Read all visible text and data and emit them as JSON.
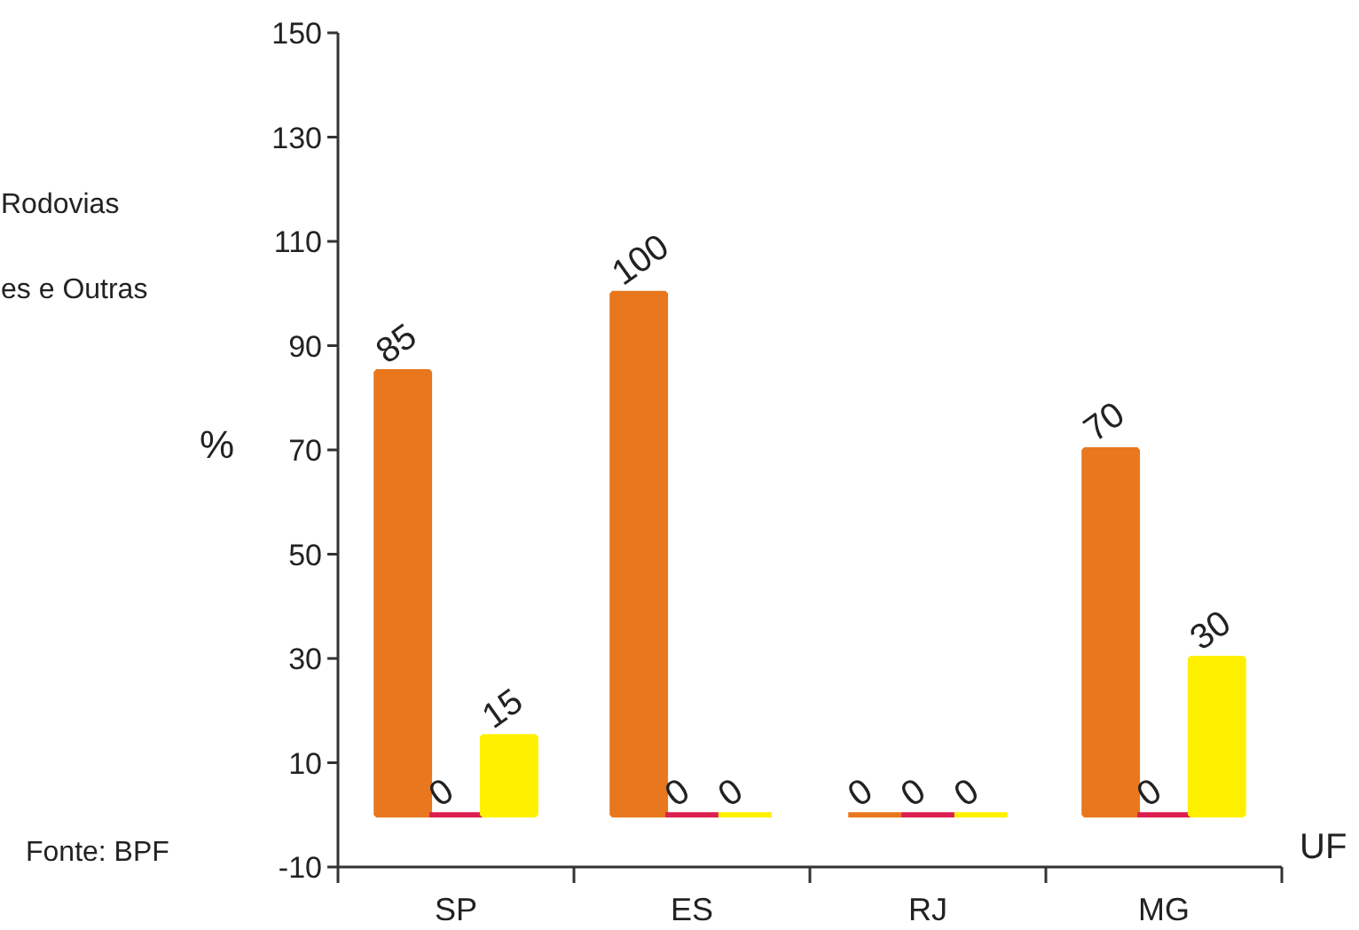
{
  "chart_data": {
    "type": "bar",
    "categories": [
      "SP",
      "ES",
      "RJ",
      "MG"
    ],
    "series": [
      {
        "color": "#e8771e",
        "values": [
          85,
          100,
          0,
          70
        ]
      },
      {
        "color": "#dc1f4f",
        "values": [
          0,
          0,
          0,
          0
        ]
      },
      {
        "color": "#fff000",
        "values": [
          15,
          0,
          0,
          30
        ]
      }
    ],
    "xlabel": "UF",
    "ylabel": "%",
    "ylim": [
      -10,
      150
    ],
    "yticks": [
      -10,
      10,
      30,
      50,
      70,
      90,
      110,
      130,
      150
    ],
    "data_labels": true,
    "grid": false,
    "annotations": [
      "Rodovias",
      "es e Outras",
      "Fonte: BPF"
    ]
  }
}
